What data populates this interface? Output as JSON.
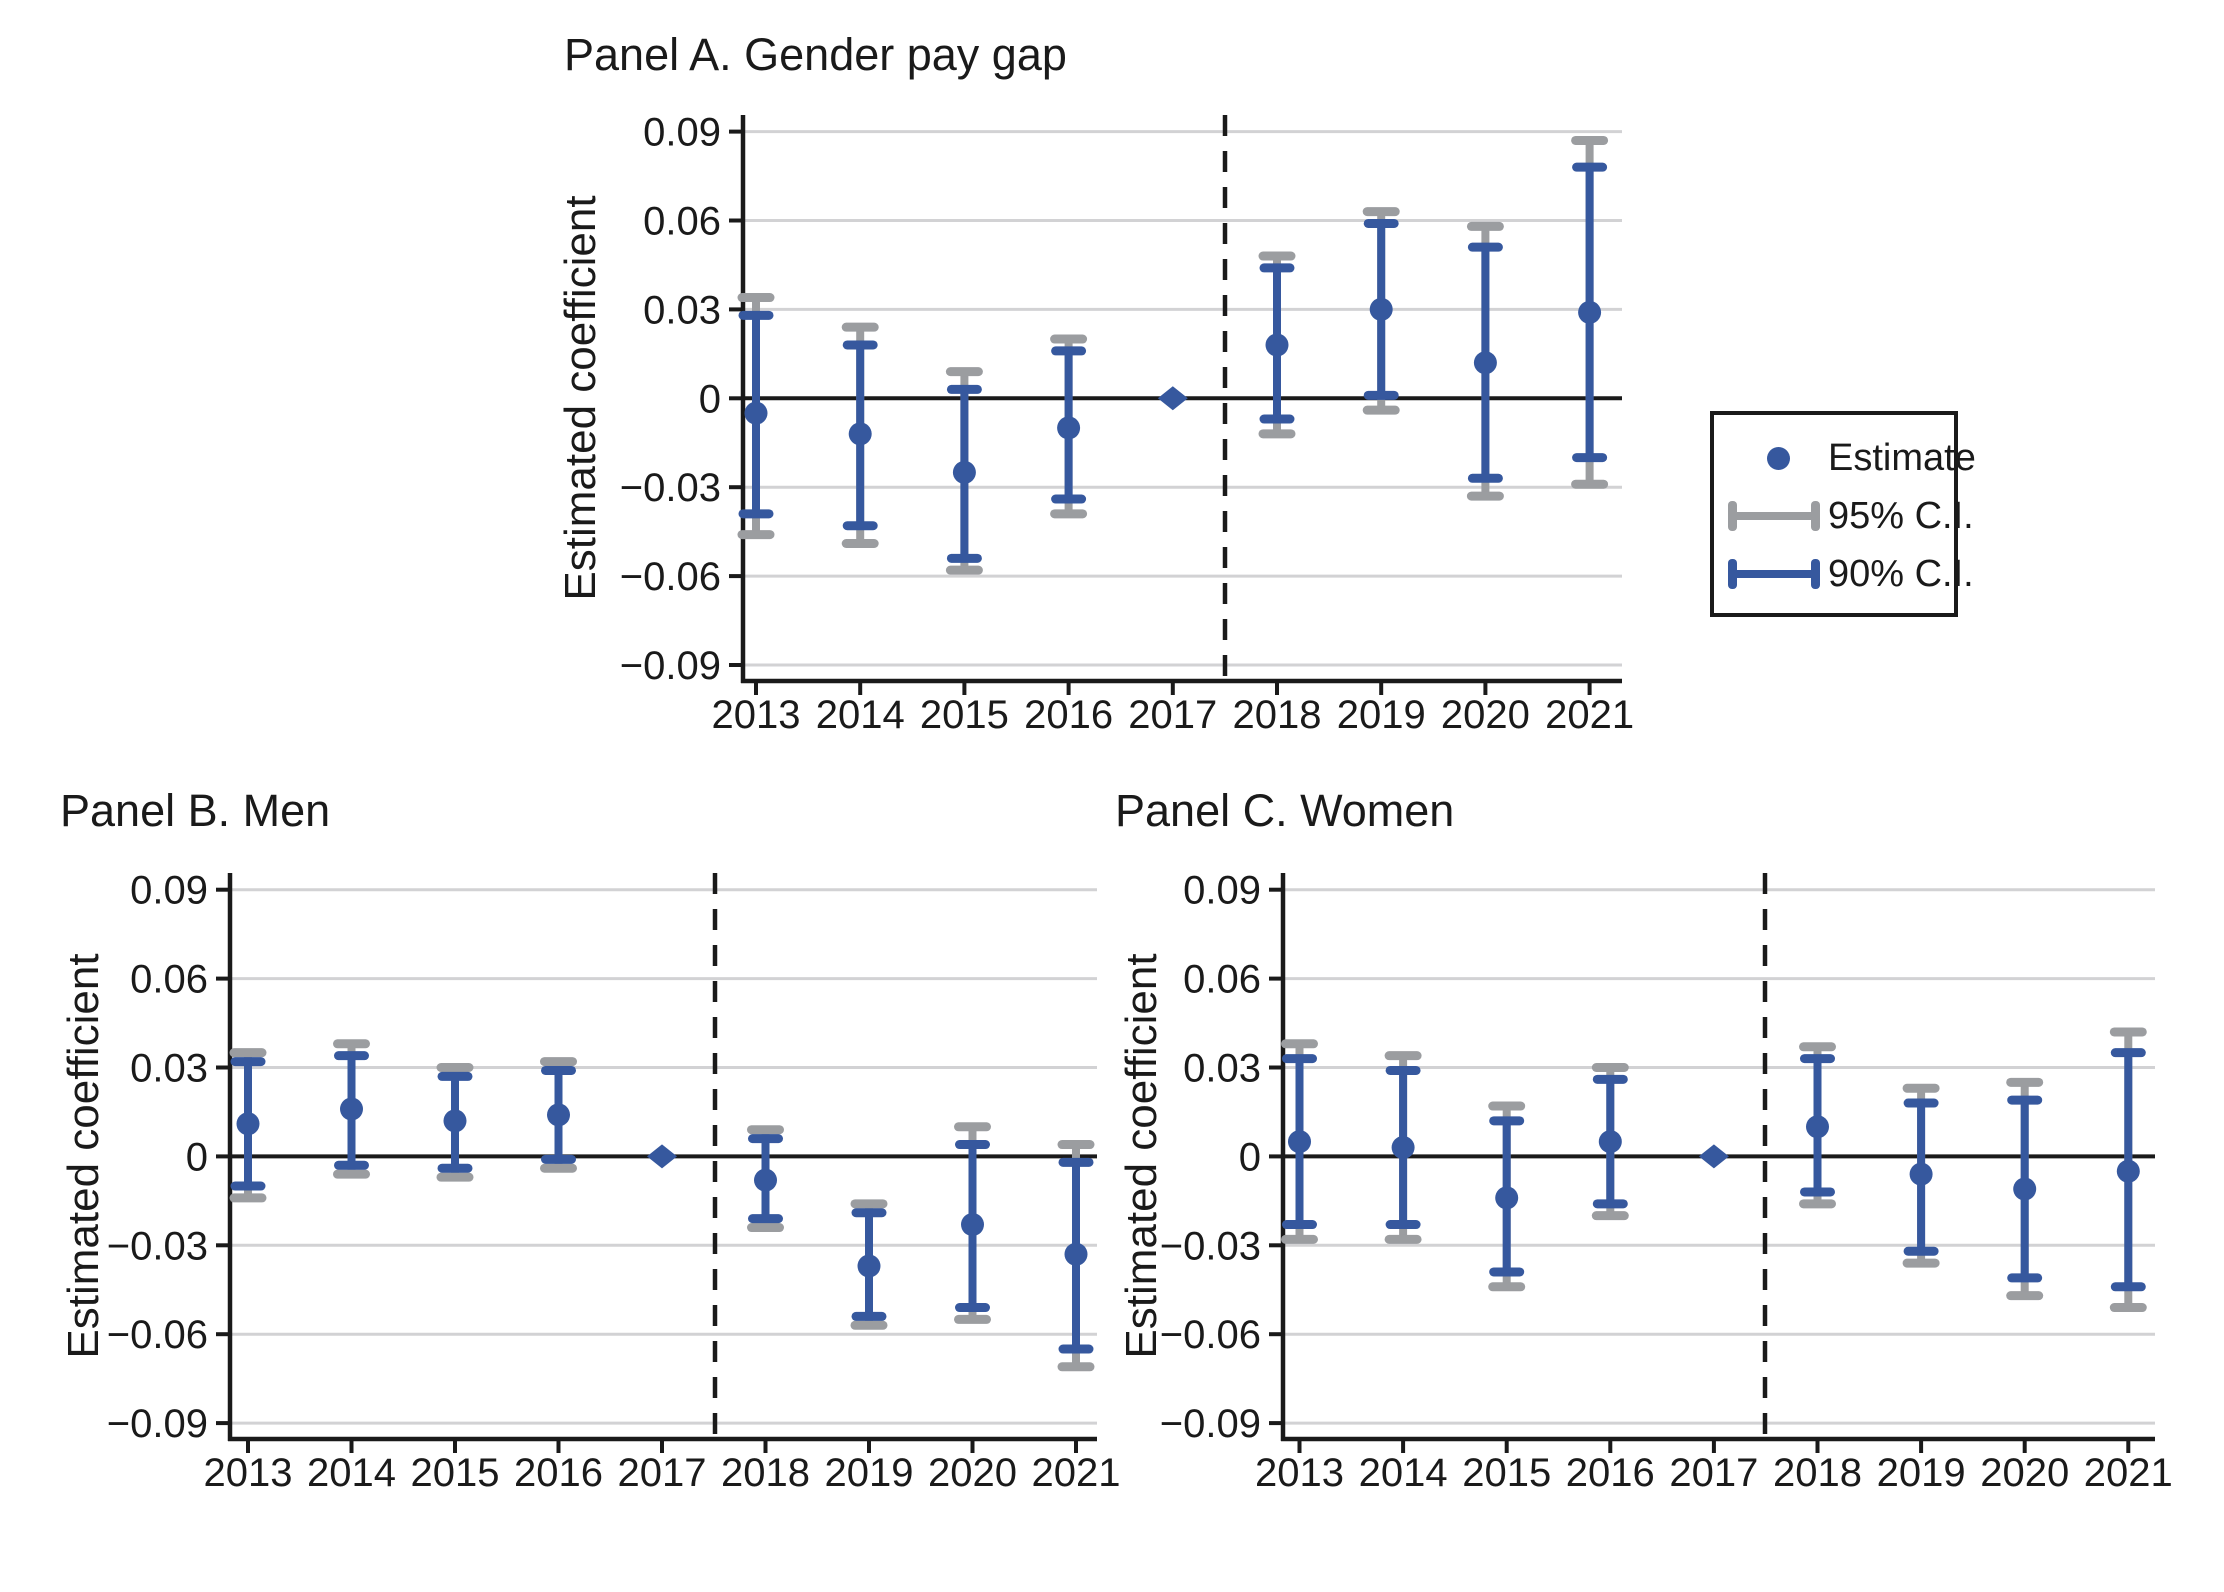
{
  "colors": {
    "blue": "#36589E",
    "gray": "#9B9DA0",
    "gridline": "#D2D2D4",
    "axis": "#1A1A1A",
    "background": "#FFFFFF"
  },
  "y_axis": {
    "label": "Estimated coefficient",
    "ticks": [
      {
        "label": "0.09",
        "value": 0.09
      },
      {
        "label": "0.06",
        "value": 0.06
      },
      {
        "label": "0.03",
        "value": 0.03
      },
      {
        "label": "0",
        "value": 0
      },
      {
        "label": "−0.03",
        "value": -0.03
      },
      {
        "label": "−0.06",
        "value": -0.06
      },
      {
        "label": "−0.09",
        "value": -0.09
      }
    ]
  },
  "x_years": [
    "2013",
    "2014",
    "2015",
    "2016",
    "2017",
    "2018",
    "2019",
    "2020",
    "2021"
  ],
  "legend": {
    "items": [
      {
        "name": "estimate",
        "label": "Estimate"
      },
      {
        "name": "ci95",
        "label": "95% C.I."
      },
      {
        "name": "ci90",
        "label": "90% C.I."
      }
    ]
  },
  "chart_data": [
    {
      "type": "scatter",
      "panel": "A",
      "title": "Panel A. Gender pay gap",
      "xlabel": "",
      "ylabel": "Estimated coefficient",
      "ylim": [
        -0.105,
        0.105
      ],
      "grid": true,
      "reference_year": "2017",
      "legend_position": "right",
      "points": [
        {
          "year": "2013",
          "estimate": -0.005,
          "ci90": [
            -0.039,
            0.028
          ],
          "ci95": [
            -0.046,
            0.034
          ]
        },
        {
          "year": "2014",
          "estimate": -0.012,
          "ci90": [
            -0.043,
            0.018
          ],
          "ci95": [
            -0.049,
            0.024
          ]
        },
        {
          "year": "2015",
          "estimate": -0.025,
          "ci90": [
            -0.054,
            0.003
          ],
          "ci95": [
            -0.058,
            0.009
          ]
        },
        {
          "year": "2016",
          "estimate": -0.01,
          "ci90": [
            -0.034,
            0.016
          ],
          "ci95": [
            -0.039,
            0.02
          ]
        },
        {
          "year": "2017",
          "estimate": 0.0,
          "ci90": null,
          "ci95": null
        },
        {
          "year": "2018",
          "estimate": 0.018,
          "ci90": [
            -0.007,
            0.044
          ],
          "ci95": [
            -0.012,
            0.048
          ]
        },
        {
          "year": "2019",
          "estimate": 0.03,
          "ci90": [
            0.001,
            0.059
          ],
          "ci95": [
            -0.004,
            0.063
          ]
        },
        {
          "year": "2020",
          "estimate": 0.012,
          "ci90": [
            -0.027,
            0.051
          ],
          "ci95": [
            -0.033,
            0.058
          ]
        },
        {
          "year": "2021",
          "estimate": 0.029,
          "ci90": [
            -0.02,
            0.078
          ],
          "ci95": [
            -0.029,
            0.087
          ]
        }
      ]
    },
    {
      "type": "scatter",
      "panel": "B",
      "title": "Panel B. Men",
      "xlabel": "",
      "ylabel": "Estimated coefficient",
      "ylim": [
        -0.105,
        0.105
      ],
      "grid": true,
      "reference_year": "2017",
      "points": [
        {
          "year": "2013",
          "estimate": 0.011,
          "ci90": [
            -0.01,
            0.032
          ],
          "ci95": [
            -0.014,
            0.035
          ]
        },
        {
          "year": "2014",
          "estimate": 0.016,
          "ci90": [
            -0.003,
            0.034
          ],
          "ci95": [
            -0.006,
            0.038
          ]
        },
        {
          "year": "2015",
          "estimate": 0.012,
          "ci90": [
            -0.004,
            0.027
          ],
          "ci95": [
            -0.007,
            0.03
          ]
        },
        {
          "year": "2016",
          "estimate": 0.014,
          "ci90": [
            -0.001,
            0.029
          ],
          "ci95": [
            -0.004,
            0.032
          ]
        },
        {
          "year": "2017",
          "estimate": 0.0,
          "ci90": null,
          "ci95": null
        },
        {
          "year": "2018",
          "estimate": -0.008,
          "ci90": [
            -0.021,
            0.006
          ],
          "ci95": [
            -0.024,
            0.009
          ]
        },
        {
          "year": "2019",
          "estimate": -0.037,
          "ci90": [
            -0.054,
            -0.019
          ],
          "ci95": [
            -0.057,
            -0.016
          ]
        },
        {
          "year": "2020",
          "estimate": -0.023,
          "ci90": [
            -0.051,
            0.004
          ],
          "ci95": [
            -0.055,
            0.01
          ]
        },
        {
          "year": "2021",
          "estimate": -0.033,
          "ci90": [
            -0.065,
            -0.002
          ],
          "ci95": [
            -0.071,
            0.004
          ]
        }
      ]
    },
    {
      "type": "scatter",
      "panel": "C",
      "title": "Panel C. Women",
      "xlabel": "",
      "ylabel": "Estimated coefficient",
      "ylim": [
        -0.105,
        0.105
      ],
      "grid": true,
      "reference_year": "2017",
      "points": [
        {
          "year": "2013",
          "estimate": 0.005,
          "ci90": [
            -0.023,
            0.033
          ],
          "ci95": [
            -0.028,
            0.038
          ]
        },
        {
          "year": "2014",
          "estimate": 0.003,
          "ci90": [
            -0.023,
            0.029
          ],
          "ci95": [
            -0.028,
            0.034
          ]
        },
        {
          "year": "2015",
          "estimate": -0.014,
          "ci90": [
            -0.039,
            0.012
          ],
          "ci95": [
            -0.044,
            0.017
          ]
        },
        {
          "year": "2016",
          "estimate": 0.005,
          "ci90": [
            -0.016,
            0.026
          ],
          "ci95": [
            -0.02,
            0.03
          ]
        },
        {
          "year": "2017",
          "estimate": 0.0,
          "ci90": null,
          "ci95": null
        },
        {
          "year": "2018",
          "estimate": 0.01,
          "ci90": [
            -0.012,
            0.033
          ],
          "ci95": [
            -0.016,
            0.037
          ]
        },
        {
          "year": "2019",
          "estimate": -0.006,
          "ci90": [
            -0.032,
            0.018
          ],
          "ci95": [
            -0.036,
            0.023
          ]
        },
        {
          "year": "2020",
          "estimate": -0.011,
          "ci90": [
            -0.041,
            0.019
          ],
          "ci95": [
            -0.047,
            0.025
          ]
        },
        {
          "year": "2021",
          "estimate": -0.005,
          "ci90": [
            -0.044,
            0.035
          ],
          "ci95": [
            -0.051,
            0.042
          ]
        }
      ]
    }
  ]
}
